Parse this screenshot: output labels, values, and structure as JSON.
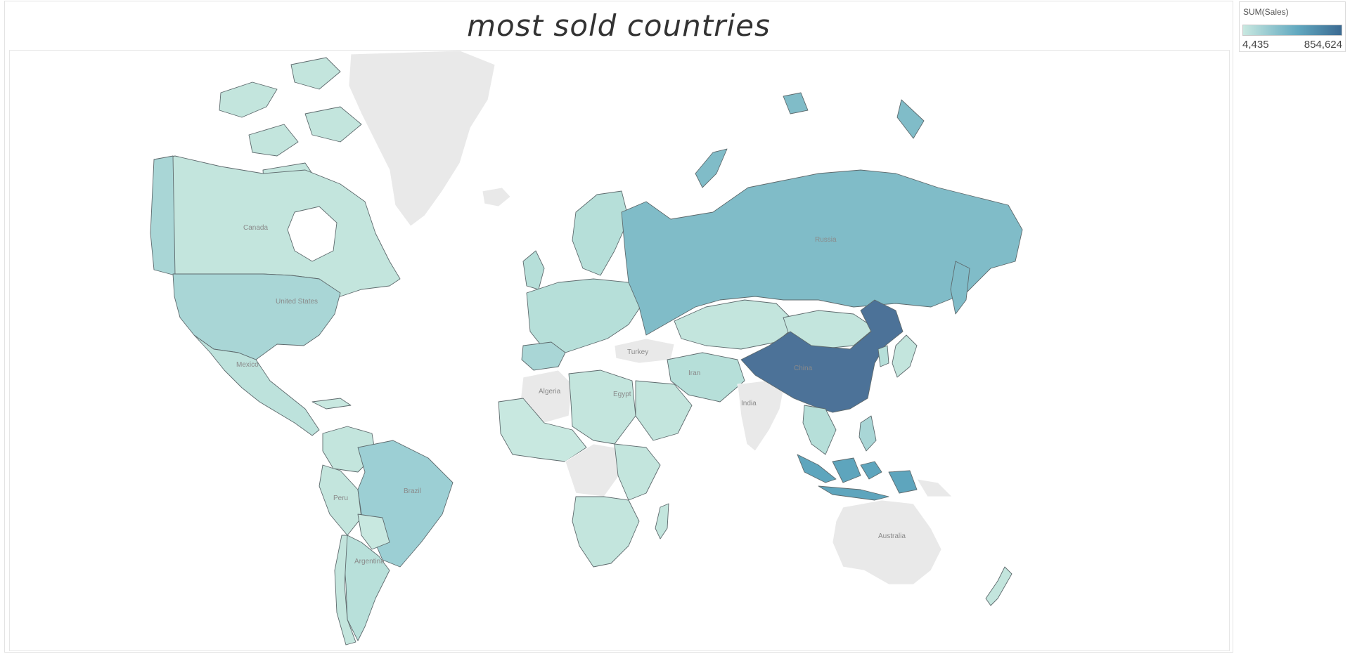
{
  "title": "most sold countries",
  "legend": {
    "title": "SUM(Sales)",
    "min_label": "4,435",
    "max_label": "854,624",
    "color_low": "#c8e8e0",
    "color_high": "#3b6a92"
  },
  "colors": {
    "no_data": "#e9e9e9",
    "border": "#5e6a6d"
  },
  "map_labels": {
    "canada": "Canada",
    "united_states": "United States",
    "mexico": "Mexico",
    "brazil": "Brazil",
    "peru": "Peru",
    "argentina": "Argentina",
    "russia": "Russia",
    "china": "China",
    "india": "India",
    "turkey": "Turkey",
    "algeria": "Algeria",
    "egypt": "Egypt",
    "iran": "Iran",
    "australia": "Australia"
  },
  "chart_data": {
    "type": "map",
    "measure": "SUM(Sales)",
    "value_range": [
      4435,
      854624
    ],
    "regions": [
      {
        "name": "China",
        "level": 1.0
      },
      {
        "name": "Indonesia",
        "level": 0.6
      },
      {
        "name": "Russia",
        "level": 0.45
      },
      {
        "name": "United States",
        "level": 0.33
      },
      {
        "name": "Brazil",
        "level": 0.28
      },
      {
        "name": "Mexico",
        "level": 0.15
      },
      {
        "name": "Canada",
        "level": 0.05
      },
      {
        "name": "Kazakhstan",
        "level": 0.05
      },
      {
        "name": "Mongolia",
        "level": 0.05
      },
      {
        "name": "Argentina",
        "level": 0.1
      },
      {
        "name": "Australia",
        "level": null
      },
      {
        "name": "India",
        "level": null
      },
      {
        "name": "Turkey",
        "level": null
      },
      {
        "name": "Algeria",
        "level": null
      }
    ]
  }
}
